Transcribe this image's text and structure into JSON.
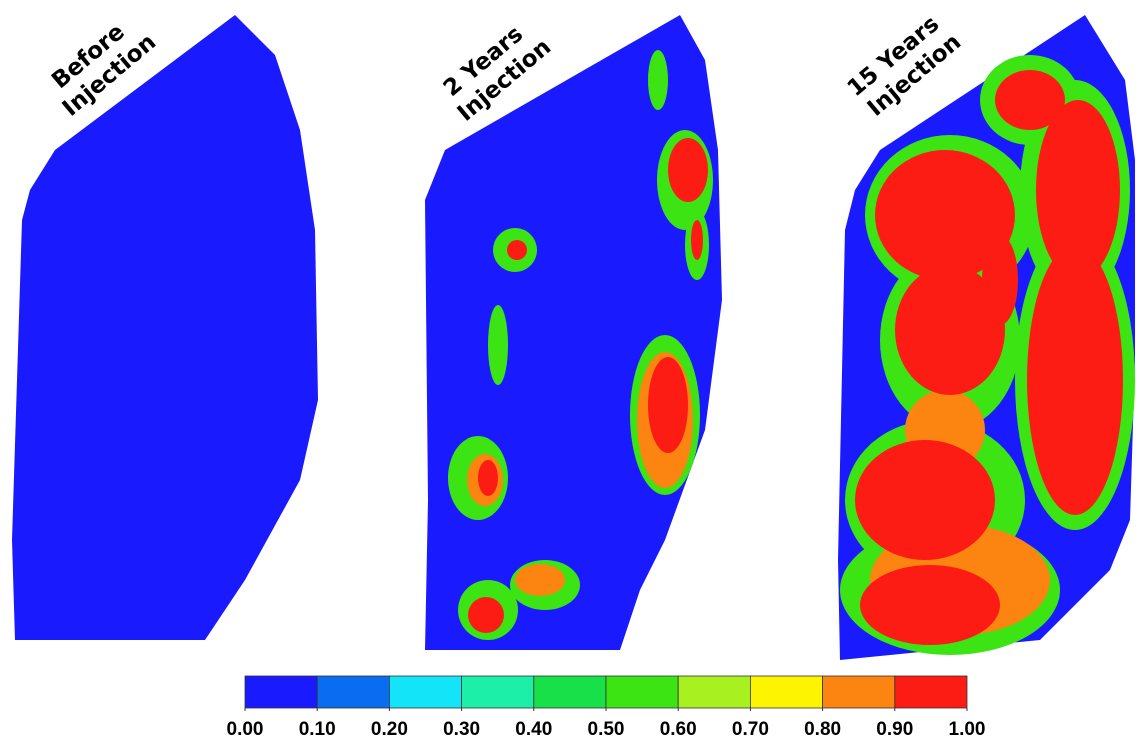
{
  "panels": [
    {
      "title": [
        "Before",
        "Injection"
      ]
    },
    {
      "title": [
        "2 Years",
        "Injection"
      ]
    },
    {
      "title": [
        "15 Years",
        "Injection"
      ]
    }
  ],
  "colorbar": {
    "colors": [
      "#1a1aff",
      "#0a6cf0",
      "#14e4f8",
      "#1cf0a8",
      "#18e048",
      "#3ce414",
      "#a8f020",
      "#fcf400",
      "#fc8410",
      "#fc1c14"
    ],
    "ticks": [
      {
        "value": 0,
        "label": "0.00"
      },
      {
        "value": 0.1,
        "label": "0.10"
      },
      {
        "value": 0.2,
        "label": "0.20"
      },
      {
        "value": 0.3,
        "label": "0.30"
      },
      {
        "value": 0.4,
        "label": "0.40"
      },
      {
        "value": 0.5,
        "label": "0.50"
      },
      {
        "value": 0.6,
        "label": "0.60"
      },
      {
        "value": 0.7,
        "label": "0.70"
      },
      {
        "value": 0.8,
        "label": "0.80"
      },
      {
        "value": 0.9,
        "label": "0.90"
      },
      {
        "value": 1,
        "label": "1.00"
      }
    ]
  }
}
